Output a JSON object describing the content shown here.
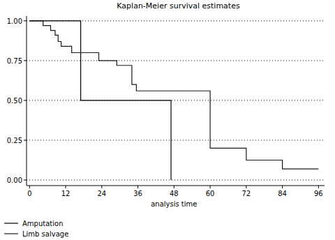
{
  "chart_data": {
    "type": "step",
    "title": "Kaplan-Meier survival estimates",
    "x_label": "analysis time",
    "xlim": [
      -1,
      98
    ],
    "xticks": [
      0,
      12,
      24,
      36,
      48,
      60,
      72,
      84,
      96
    ],
    "ylim": [
      -0.035,
      1.03
    ],
    "yticks": [
      {
        "value": 0,
        "label": "0.00"
      },
      {
        "value": 0.25,
        "label": "0.25"
      },
      {
        "value": 0.5,
        "label": "0.50"
      },
      {
        "value": 0.75,
        "label": "0.75"
      },
      {
        "value": 1,
        "label": "1.00"
      }
    ],
    "grid": true,
    "legend": "bottom",
    "series": [
      {
        "name": "Amputation",
        "color": "#000000",
        "line_style": "solid",
        "x": [
          0,
          17,
          47
        ],
        "values": [
          1,
          0.5,
          0
        ]
      },
      {
        "name": "Limb salvage",
        "color": "#1a1a1a",
        "line_style": "solid",
        "x": [
          0,
          4.5,
          7,
          8.5,
          9.5,
          10.5,
          14,
          23,
          29,
          34,
          35.5,
          60,
          72,
          84,
          96
        ],
        "values": [
          1,
          0.97,
          0.94,
          0.91,
          0.87,
          0.84,
          0.8,
          0.75,
          0.72,
          0.6,
          0.56,
          0.2,
          0.125,
          0.07,
          0.07
        ]
      }
    ]
  }
}
